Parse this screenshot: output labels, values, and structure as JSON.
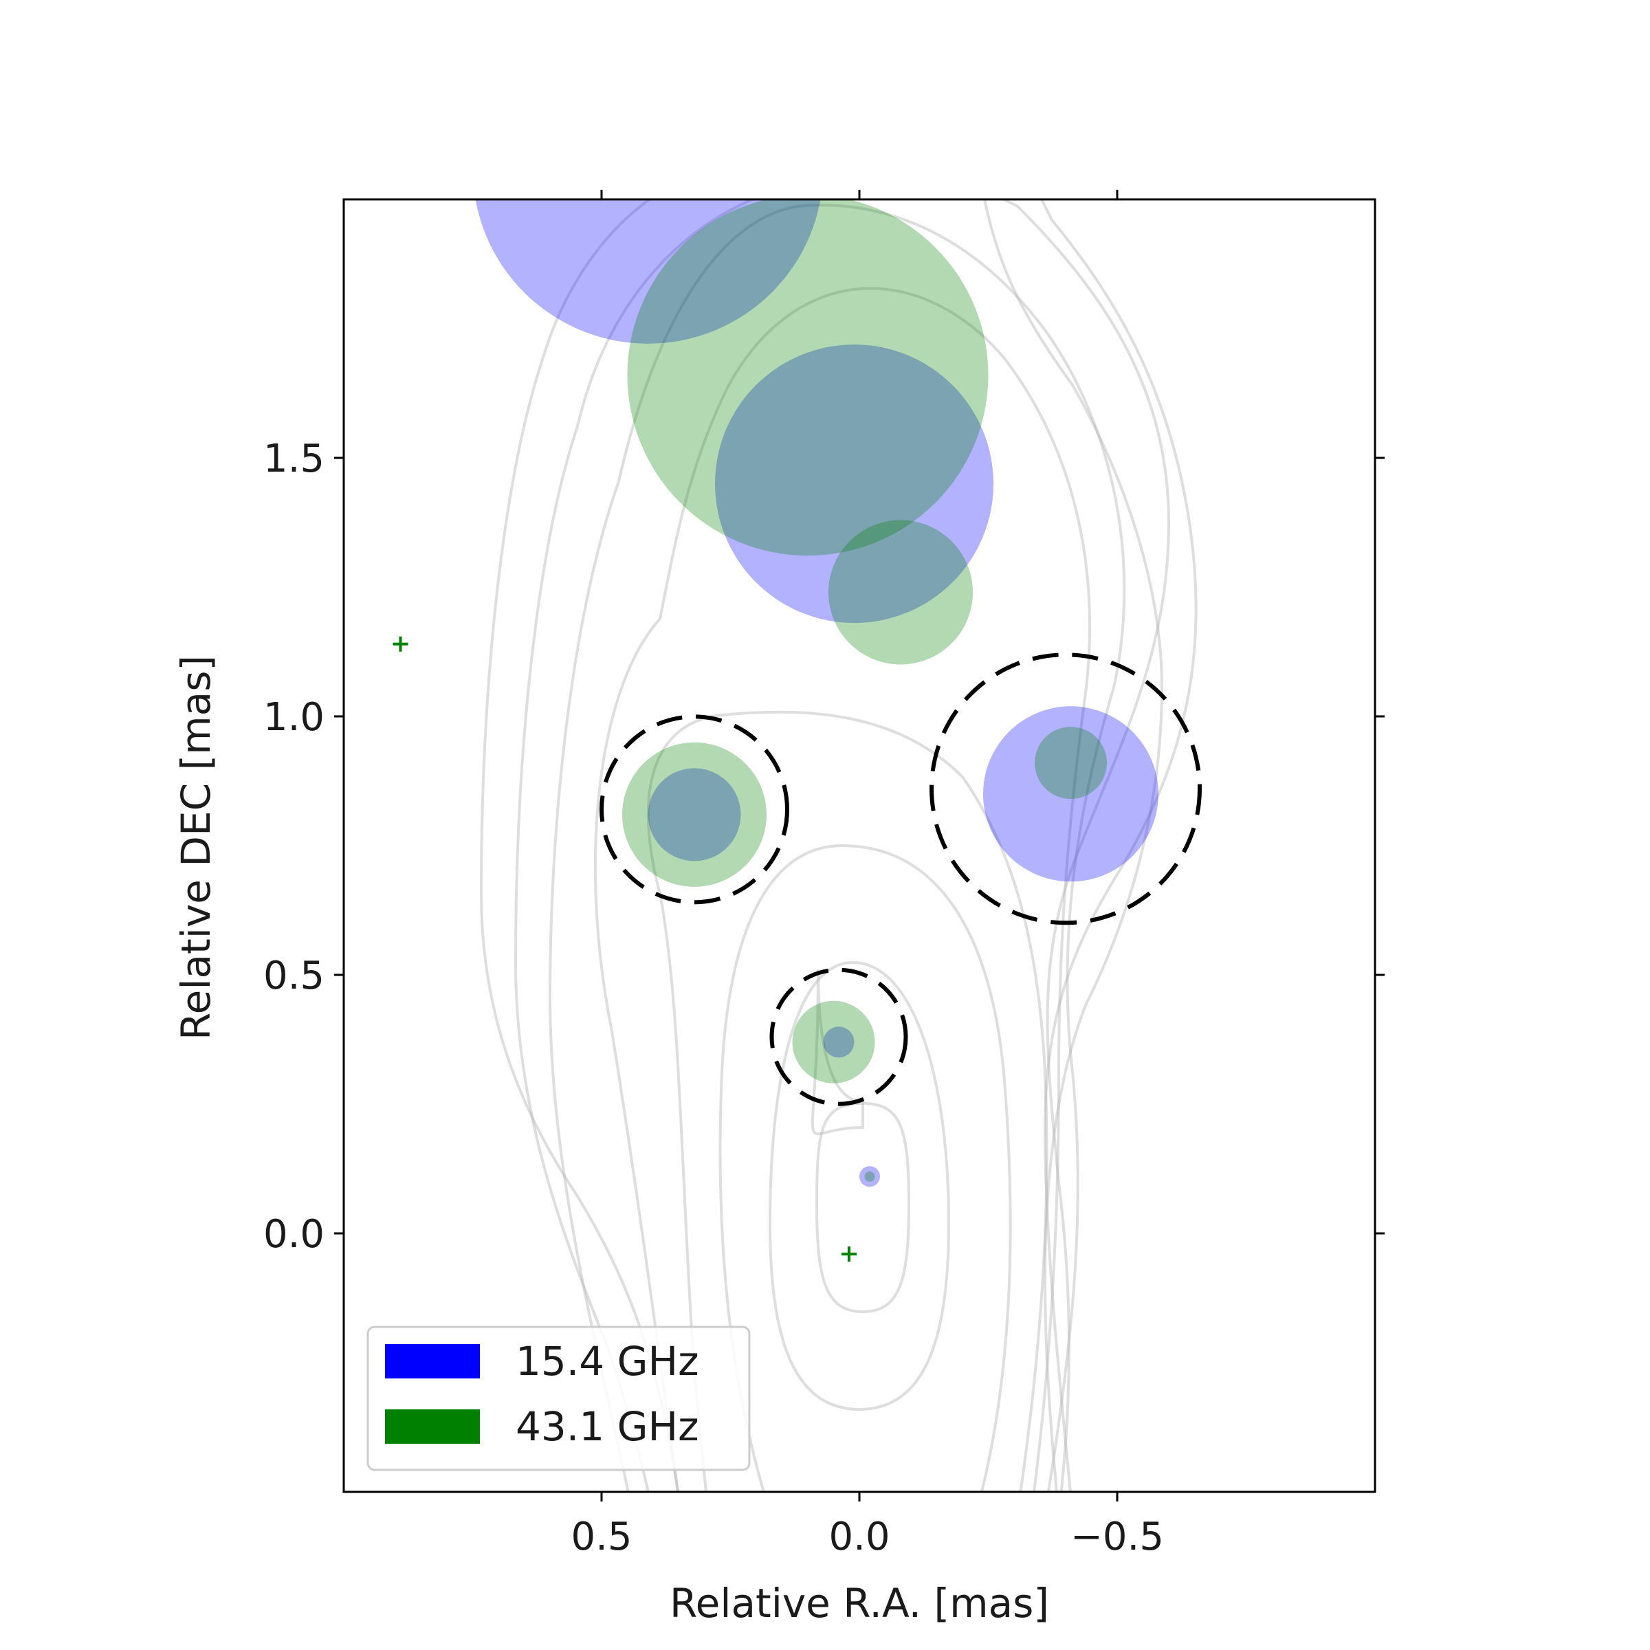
{
  "chart_data": {
    "type": "scatter",
    "title": "",
    "xlabel": "Relative R.A. [mas]",
    "ylabel": "Relative DEC [mas]",
    "xlim": [
      1.0,
      -1.0
    ],
    "ylim": [
      -0.5,
      2.0
    ],
    "x_ticks": [
      {
        "value": 0.5,
        "label": "0.5"
      },
      {
        "value": 0.0,
        "label": "0.0"
      },
      {
        "value": -0.5,
        "label": "−0.5"
      }
    ],
    "y_ticks": [
      {
        "value": 0.0,
        "label": "0.0"
      },
      {
        "value": 0.5,
        "label": "0.5"
      },
      {
        "value": 1.0,
        "label": "1.0"
      },
      {
        "value": 1.5,
        "label": "1.5"
      }
    ],
    "grid": false,
    "legend_position": "lower-left",
    "series": [
      {
        "name": "15.4 GHz",
        "color": "#0000ff",
        "opacity": 0.3,
        "components": [
          {
            "x": 0.41,
            "y": 2.06,
            "r": 0.34
          },
          {
            "x": 0.01,
            "y": 1.45,
            "r": 0.27
          },
          {
            "x": 0.32,
            "y": 0.81,
            "r": 0.09
          },
          {
            "x": -0.41,
            "y": 0.85,
            "r": 0.17
          },
          {
            "x": 0.04,
            "y": 0.37,
            "r": 0.03
          },
          {
            "x": -0.02,
            "y": 0.11,
            "r": 0.02
          }
        ]
      },
      {
        "name": "43.1 GHz",
        "color": "#008000",
        "opacity": 0.3,
        "components": [
          {
            "x": 0.1,
            "y": 1.66,
            "r": 0.35
          },
          {
            "x": -0.08,
            "y": 1.24,
            "r": 0.14
          },
          {
            "x": 0.32,
            "y": 0.81,
            "r": 0.14
          },
          {
            "x": -0.41,
            "y": 0.91,
            "r": 0.07
          },
          {
            "x": 0.05,
            "y": 0.37,
            "r": 0.08
          },
          {
            "x": -0.02,
            "y": 0.11,
            "r": 0.01
          }
        ]
      }
    ],
    "markers": [
      {
        "x": 0.89,
        "y": 1.14,
        "symbol": "+",
        "color": "#008000"
      },
      {
        "x": 0.02,
        "y": -0.04,
        "symbol": "+",
        "color": "#008000"
      }
    ],
    "dashed_circles": [
      {
        "x": 0.32,
        "y": 0.82,
        "r": 0.18
      },
      {
        "x": -0.4,
        "y": 0.86,
        "r": 0.26
      },
      {
        "x": 0.04,
        "y": 0.38,
        "r": 0.13
      }
    ]
  }
}
